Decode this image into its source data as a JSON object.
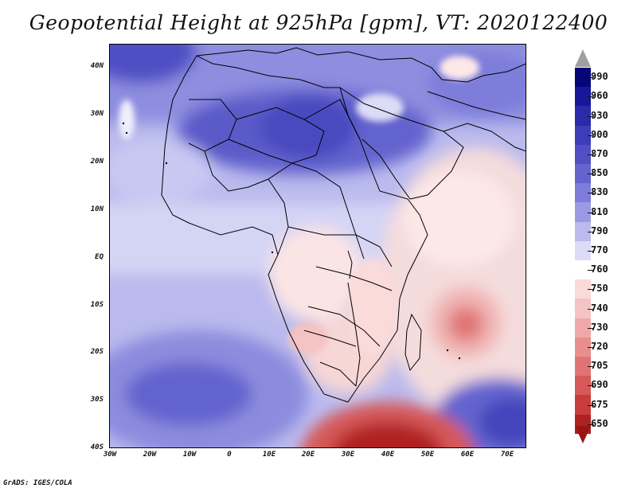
{
  "title": "Geopotential Height at 925hPa [gpm], VT: 2020122400",
  "footer": "GrADS: IGES/COLA",
  "map": {
    "type": "filled-contour",
    "variable": "Geopotential Height",
    "level": "925hPa",
    "units": "gpm",
    "valid_time": "2020122400",
    "lat_ticks": [
      "40N",
      "30N",
      "20N",
      "10N",
      "EQ",
      "10S",
      "20S",
      "30S",
      "40S"
    ],
    "lon_ticks": [
      "30W",
      "20W",
      "10W",
      "0",
      "10E",
      "20E",
      "30E",
      "40E",
      "50E",
      "60E",
      "70E"
    ],
    "features": [
      {
        "name": "subtropical-high-north-africa",
        "value": 890
      },
      {
        "name": "thermal-low-southern-africa",
        "value": 750
      },
      {
        "name": "tropical-low-indian-ocean",
        "value": 730
      },
      {
        "name": "southern-ocean-trough",
        "value": 675
      },
      {
        "name": "south-atlantic-high",
        "value": 860
      },
      {
        "name": "south-indian-high",
        "value": 870
      }
    ]
  },
  "colorbar": {
    "levels": [
      {
        "label": "990",
        "color": "#060678"
      },
      {
        "label": "960",
        "color": "#17179a"
      },
      {
        "label": "930",
        "color": "#2a2aaa"
      },
      {
        "label": "900",
        "color": "#3d3db8"
      },
      {
        "label": "870",
        "color": "#5050c4"
      },
      {
        "label": "850",
        "color": "#6464cf"
      },
      {
        "label": "830",
        "color": "#7d7dda"
      },
      {
        "label": "810",
        "color": "#9a9ae4"
      },
      {
        "label": "790",
        "color": "#babaee"
      },
      {
        "label": "770",
        "color": "#dcdcf7"
      },
      {
        "label": "760",
        "color": "#ffffff"
      },
      {
        "label": "750",
        "color": "#fbdada"
      },
      {
        "label": "740",
        "color": "#f5c3c3"
      },
      {
        "label": "730",
        "color": "#eea8a8"
      },
      {
        "label": "720",
        "color": "#e88e8e"
      },
      {
        "label": "705",
        "color": "#e07474"
      },
      {
        "label": "690",
        "color": "#d65858"
      },
      {
        "label": "675",
        "color": "#c93c3c"
      },
      {
        "label": "650",
        "color": "#b02020"
      }
    ],
    "over_color": "#a0a0a0",
    "under_color": "#9a1414"
  }
}
